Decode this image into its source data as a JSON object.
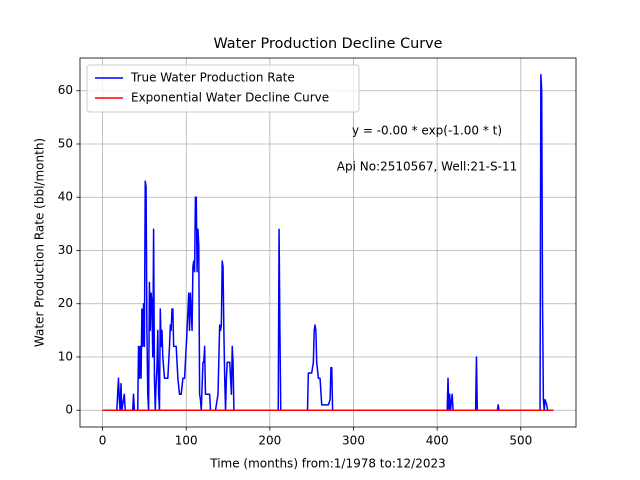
{
  "chart_data": {
    "type": "line",
    "title": "Water Production Decline Curve",
    "x_label": "Time (months) from:1/1978 to:12/2023",
    "y_label": "Water Production Rate (bbl/month)",
    "annotations": [
      "y = -0.00 * exp(-1.00 * t)",
      "Api No:2510567, Well:21-S-11"
    ],
    "xlim": [
      -27,
      566
    ],
    "ylim": [
      -3.15,
      66.15
    ],
    "xticks": [
      0,
      100,
      200,
      300,
      400,
      500
    ],
    "yticks": [
      0,
      10,
      20,
      30,
      40,
      50,
      60
    ],
    "grid": true,
    "legend": "upper left",
    "series": [
      {
        "name": "True Water Production Rate",
        "color": "#0000ff",
        "x": [
          0,
          17,
          18,
          19,
          20,
          21,
          22,
          23,
          26,
          27,
          36,
          37,
          38,
          42,
          43,
          44,
          45,
          46,
          47,
          48,
          49,
          50,
          51,
          52,
          53,
          54,
          55,
          56,
          57,
          58,
          59,
          60,
          61,
          62,
          63,
          64,
          65,
          66,
          67,
          68,
          69,
          70,
          71,
          72,
          74,
          78,
          80,
          81,
          82,
          83,
          84,
          85,
          88,
          90,
          92,
          94,
          96,
          98,
          100,
          101,
          103,
          104,
          105,
          107,
          108,
          109,
          110,
          111,
          112,
          113,
          114,
          115,
          116,
          117,
          118,
          120,
          121,
          122,
          123,
          125,
          128,
          129,
          135,
          138,
          140,
          141,
          142,
          143,
          144,
          145,
          146,
          147,
          148,
          149,
          152,
          153,
          154,
          155,
          156,
          157,
          210,
          211,
          212,
          213,
          245,
          246,
          250,
          252,
          253,
          254,
          255,
          256,
          258,
          260,
          262,
          270,
          272,
          273,
          274,
          275,
          412,
          413,
          414,
          415,
          416,
          418,
          419,
          446,
          447,
          448,
          472,
          473,
          474,
          523,
          524,
          525,
          526,
          527,
          528,
          529,
          531,
          532,
          539
        ],
        "values": [
          0,
          0,
          3,
          6,
          2,
          0,
          5,
          0,
          3,
          0,
          0,
          3,
          0,
          0,
          12,
          6,
          12,
          6,
          19,
          12,
          20,
          12,
          43,
          42,
          15,
          3,
          0,
          24,
          15,
          22,
          20,
          10,
          34,
          6,
          0,
          5,
          8,
          15,
          3,
          0,
          19,
          12,
          15,
          10,
          6,
          6,
          12,
          16,
          15,
          19,
          19,
          12,
          12,
          6,
          3,
          3,
          6,
          6,
          12,
          15,
          22,
          15,
          22,
          15,
          27,
          28,
          26,
          40,
          40,
          26,
          34,
          31,
          3,
          2,
          0,
          9,
          9,
          12,
          3,
          3,
          3,
          0,
          0,
          3,
          16,
          15,
          16,
          28,
          27,
          15,
          6,
          0,
          6,
          9,
          9,
          6,
          3,
          12,
          9,
          0,
          0,
          34,
          15,
          0,
          0,
          7,
          7,
          9,
          15,
          16,
          15,
          9,
          6,
          6,
          1,
          1,
          2,
          8,
          8,
          0,
          0,
          6,
          0,
          3,
          0,
          3,
          0,
          0,
          10,
          0,
          0,
          1,
          0,
          0,
          63,
          60,
          20,
          2,
          0,
          2,
          1,
          0,
          0
        ]
      },
      {
        "name": "Exponential Water Decline Curve",
        "color": "#ff0000",
        "x": [
          0,
          539
        ],
        "values": [
          0,
          0
        ]
      }
    ]
  }
}
